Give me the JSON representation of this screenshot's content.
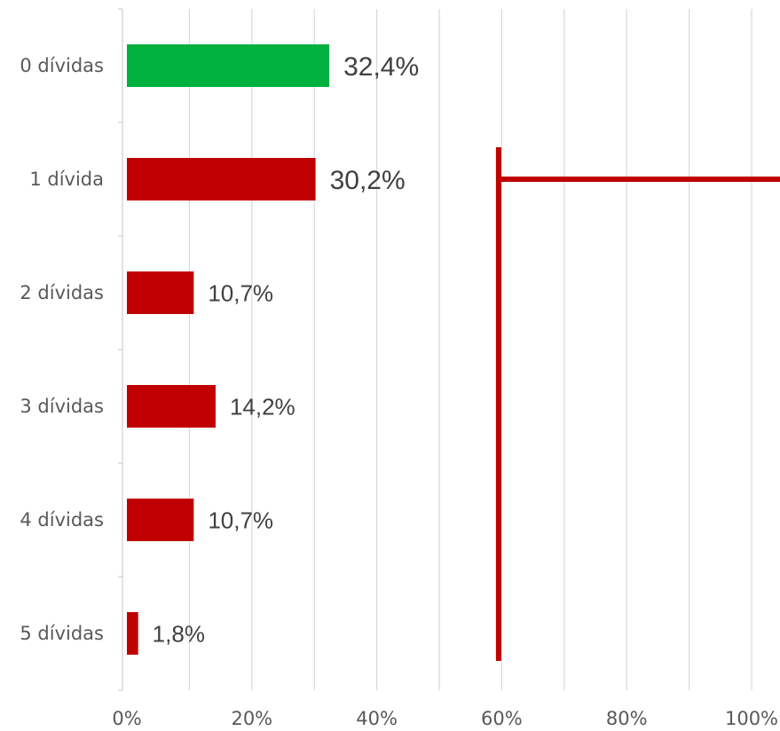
{
  "chart_data": {
    "type": "bar",
    "orientation": "horizontal",
    "categories": [
      "0 dívidas",
      "1 dívida",
      "2 dívidas",
      "3 dívidas",
      "4 dívidas",
      "5 dívidas"
    ],
    "values": [
      32.4,
      30.2,
      10.7,
      14.2,
      10.7,
      1.8
    ],
    "value_labels": [
      "32,4%",
      "30,2%",
      "10,7%",
      "14,2%",
      "10,7%",
      "1,8%"
    ],
    "bar_colors": [
      "#00b140",
      "#c00000",
      "#c00000",
      "#c00000",
      "#c00000",
      "#c00000"
    ],
    "xlim": [
      0,
      100
    ],
    "x_ticks": [
      0,
      20,
      40,
      60,
      80,
      100
    ],
    "x_tick_labels": [
      "0%",
      "20%",
      "40%",
      "60%",
      "80%",
      "100%"
    ],
    "minor_gridlines_every": 10,
    "grid": true,
    "title": "",
    "xlabel": "",
    "ylabel": "",
    "annotation": {
      "shape": "bracket",
      "color": "#c00000",
      "x_value": 59.5,
      "spans_categories": [
        "1 dívida",
        "5 dívidas"
      ],
      "arm_at_category": "1 dívida",
      "arm_extends_to": "right-edge"
    }
  }
}
